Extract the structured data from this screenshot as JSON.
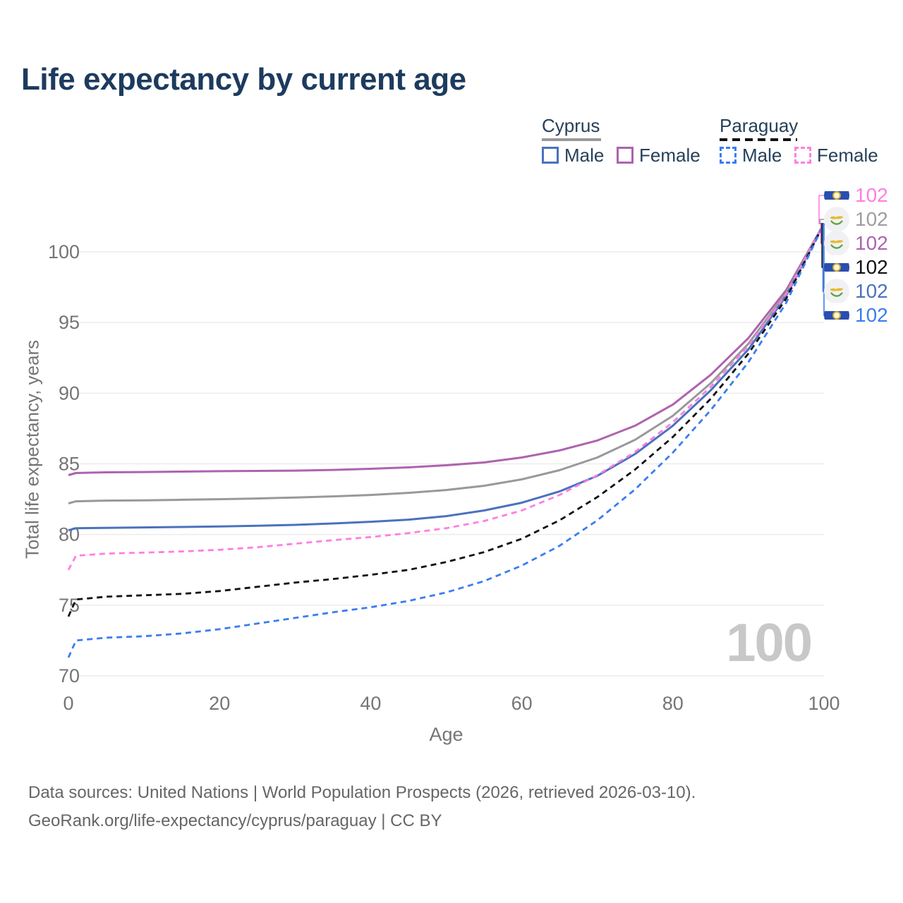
{
  "title": "Life expectancy by current age",
  "legend": {
    "cyprus_label": "Cyprus",
    "paraguay_label": "Paraguay",
    "male_label": "Male",
    "female_label": "Female"
  },
  "axes": {
    "x_title": "Age",
    "y_title": "Total life expectancy, years"
  },
  "watermark": "100",
  "footer": {
    "line1": "Data sources: United Nations | World Population Prospects (2026, retrieved 2026-03-10).",
    "line2": "GeoRank.org/life-expectancy/cyprus/paraguay | CC BY"
  },
  "colors": {
    "cyprus_male": "#4a72bd",
    "cyprus_female": "#ae63ae",
    "cyprus_combined": "#999999",
    "paraguay_male": "#3b7df0",
    "paraguay_female": "#ff7ee0",
    "paraguay_combined": "#111111",
    "title_text": "#1d3b5e",
    "axis_text": "#757575",
    "gridline": "#ececec",
    "watermark": "#c8c8c8"
  },
  "end_labels": [
    {
      "series": "paraguay_female",
      "flag": "paraguay",
      "value": "102"
    },
    {
      "series": "cyprus_combined",
      "flag": "cyprus",
      "value": "102"
    },
    {
      "series": "cyprus_female",
      "flag": "cyprus",
      "value": "102"
    },
    {
      "series": "paraguay_combined",
      "flag": "paraguay",
      "value": "102"
    },
    {
      "series": "cyprus_male",
      "flag": "cyprus",
      "value": "102"
    },
    {
      "series": "paraguay_male",
      "flag": "paraguay",
      "value": "102"
    }
  ],
  "chart_data": {
    "type": "line",
    "title": "Life expectancy by current age",
    "xlabel": "Age",
    "ylabel": "Total life expectancy, years",
    "xlim": [
      0,
      100
    ],
    "ylim": [
      68.5,
      103
    ],
    "x_ticks": [
      0,
      20,
      40,
      60,
      80,
      100
    ],
    "y_ticks": [
      70,
      75,
      80,
      85,
      90,
      95,
      100
    ],
    "grid": "horizontal",
    "legend_position": "top-right",
    "x": [
      0,
      1,
      5,
      10,
      15,
      20,
      25,
      30,
      35,
      40,
      45,
      50,
      55,
      60,
      65,
      70,
      75,
      80,
      85,
      90,
      95,
      100
    ],
    "series": [
      {
        "key": "cyprus_female",
        "name": "Cyprus Female",
        "country": "Cyprus",
        "sex": "Female",
        "style": "solid",
        "color": "#ae63ae",
        "end_value": 102,
        "values": [
          84.2,
          84.35,
          84.4,
          84.42,
          84.45,
          84.48,
          84.5,
          84.52,
          84.57,
          84.65,
          84.75,
          84.9,
          85.1,
          85.45,
          85.95,
          86.65,
          87.7,
          89.2,
          91.3,
          93.9,
          97.3,
          102
        ]
      },
      {
        "key": "cyprus_combined",
        "name": "Cyprus (both sexes)",
        "country": "Cyprus",
        "sex": "Both",
        "style": "solid",
        "color": "#999999",
        "end_value": 102,
        "values": [
          82.2,
          82.35,
          82.4,
          82.42,
          82.46,
          82.5,
          82.55,
          82.62,
          82.7,
          82.8,
          82.95,
          83.15,
          83.45,
          83.9,
          84.55,
          85.45,
          86.7,
          88.4,
          90.7,
          93.5,
          97.1,
          102
        ]
      },
      {
        "key": "cyprus_male",
        "name": "Cyprus Male",
        "country": "Cyprus",
        "sex": "Male",
        "style": "solid",
        "color": "#4a72bd",
        "end_value": 102,
        "values": [
          80.3,
          80.45,
          80.47,
          80.5,
          80.53,
          80.57,
          80.62,
          80.68,
          80.78,
          80.9,
          81.05,
          81.3,
          81.7,
          82.25,
          83.05,
          84.15,
          85.7,
          87.7,
          90.2,
          93.1,
          96.9,
          102
        ]
      },
      {
        "key": "paraguay_female",
        "name": "Paraguay Female",
        "country": "Paraguay",
        "sex": "Female",
        "style": "dashed",
        "color": "#ff7ee0",
        "end_value": 102,
        "values": [
          77.5,
          78.5,
          78.65,
          78.72,
          78.8,
          78.92,
          79.1,
          79.35,
          79.6,
          79.82,
          80.1,
          80.45,
          80.95,
          81.7,
          82.8,
          84.2,
          85.85,
          87.95,
          90.45,
          93.35,
          97.0,
          102
        ]
      },
      {
        "key": "paraguay_combined",
        "name": "Paraguay (both sexes)",
        "country": "Paraguay",
        "sex": "Both",
        "style": "dashed",
        "color": "#111111",
        "end_value": 102,
        "values": [
          74.2,
          75.4,
          75.6,
          75.7,
          75.8,
          76.0,
          76.3,
          76.6,
          76.85,
          77.15,
          77.5,
          78.05,
          78.75,
          79.7,
          81.0,
          82.65,
          84.6,
          86.9,
          89.6,
          92.8,
          96.7,
          102
        ]
      },
      {
        "key": "paraguay_male",
        "name": "Paraguay Male",
        "country": "Paraguay",
        "sex": "Male",
        "style": "dashed",
        "color": "#3b7df0",
        "end_value": 102,
        "values": [
          71.3,
          72.5,
          72.7,
          72.8,
          73.0,
          73.3,
          73.7,
          74.1,
          74.5,
          74.85,
          75.3,
          75.9,
          76.7,
          77.8,
          79.2,
          81.0,
          83.2,
          85.8,
          88.8,
          92.2,
          96.4,
          102
        ]
      }
    ]
  }
}
